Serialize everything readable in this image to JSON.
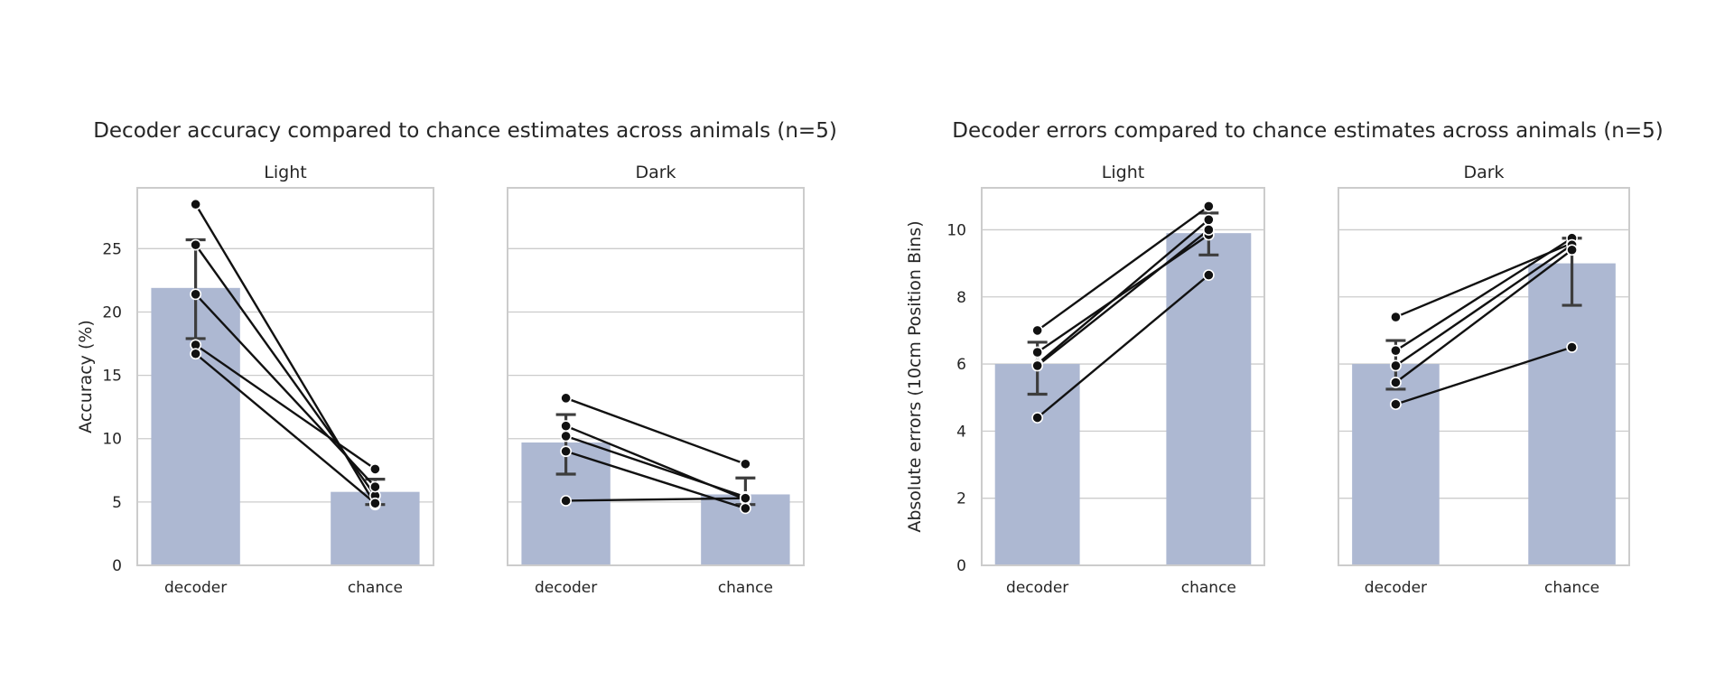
{
  "figures": [
    {
      "title": "Decoder accuracy compared to chance estimates across animals (n=5)",
      "ylabel": "Accuracy (%)"
    },
    {
      "title": "Decoder errors compared to chance estimates across animals (n=5)",
      "ylabel": "Absolute errors (10cm Position Bins)"
    }
  ],
  "chart_data": [
    {
      "type": "bar",
      "figure": 0,
      "title": "Light",
      "categories": [
        "decoder",
        "chance"
      ],
      "ylabel": "Accuracy (%)",
      "ylim": [
        0,
        29.8
      ],
      "yticks": [
        0,
        5,
        10,
        15,
        20,
        25
      ],
      "show_yticks": true,
      "grid": true,
      "bars": [
        21.9,
        5.8
      ],
      "error": [
        [
          17.9,
          25.7
        ],
        [
          4.8,
          6.8
        ]
      ],
      "pairs": [
        [
          28.5,
          4.8
        ],
        [
          25.3,
          5.5
        ],
        [
          21.4,
          6.2
        ],
        [
          17.4,
          7.6
        ],
        [
          16.7,
          4.9
        ]
      ]
    },
    {
      "type": "bar",
      "figure": 0,
      "title": "Dark",
      "categories": [
        "decoder",
        "chance"
      ],
      "ylabel": "",
      "ylim": [
        0,
        29.8
      ],
      "yticks": [
        0,
        5,
        10,
        15,
        20,
        25
      ],
      "show_yticks": false,
      "grid": true,
      "bars": [
        9.7,
        5.6
      ],
      "error": [
        [
          7.2,
          11.9
        ],
        [
          4.8,
          6.9
        ]
      ],
      "pairs": [
        [
          13.2,
          8.0
        ],
        [
          11.0,
          5.2
        ],
        [
          10.2,
          5.4
        ],
        [
          9.0,
          4.5
        ],
        [
          5.1,
          5.3
        ]
      ]
    },
    {
      "type": "bar",
      "figure": 1,
      "title": "Light",
      "categories": [
        "decoder",
        "chance"
      ],
      "ylabel": "Absolute errors (10cm Position Bins)",
      "ylim": [
        0,
        11.25
      ],
      "yticks": [
        0,
        2,
        4,
        6,
        8,
        10
      ],
      "show_yticks": true,
      "grid": true,
      "bars": [
        6.0,
        9.9
      ],
      "error": [
        [
          5.1,
          6.65
        ],
        [
          9.25,
          10.5
        ]
      ],
      "pairs": [
        [
          7.0,
          10.7
        ],
        [
          6.35,
          9.85
        ],
        [
          6.0,
          10.3
        ],
        [
          5.95,
          10.0
        ],
        [
          4.4,
          8.65
        ]
      ]
    },
    {
      "type": "bar",
      "figure": 1,
      "title": "Dark",
      "categories": [
        "decoder",
        "chance"
      ],
      "ylabel": "",
      "ylim": [
        0,
        11.25
      ],
      "yticks": [
        0,
        2,
        4,
        6,
        8,
        10
      ],
      "show_yticks": false,
      "grid": true,
      "bars": [
        6.0,
        9.0
      ],
      "error": [
        [
          5.25,
          6.7
        ],
        [
          7.75,
          9.75
        ]
      ],
      "pairs": [
        [
          7.4,
          9.6
        ],
        [
          6.4,
          9.75
        ],
        [
          5.95,
          9.55
        ],
        [
          5.45,
          9.4
        ],
        [
          4.8,
          6.5
        ]
      ]
    }
  ]
}
